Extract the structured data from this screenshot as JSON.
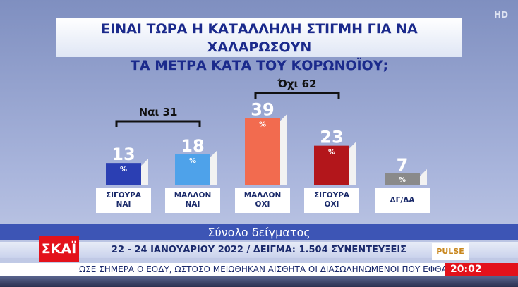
{
  "chart_data": {
    "type": "bar",
    "title_lines": [
      "ΕΙΝΑΙ ΤΩΡΑ Η ΚΑΤΑΛΛΗΛΗ ΣΤΙΓΜΗ ΓΙΑ ΝΑ ΧΑΛΑΡΩΣΟΥΝ",
      "ΤΑ ΜΕΤΡΑ ΚΑΤΑ ΤΟΥ ΚΟΡΩΝΟΪΟΥ;"
    ],
    "categories": [
      "ΣΙΓΟΥΡΑ\nΝΑΙ",
      "ΜΑΛΛΟΝ\nΝΑΙ",
      "ΜΑΛΛΟΝ\nΟΧΙ",
      "ΣΙΓΟΥΡΑ\nΟΧΙ",
      "ΔΓ/ΔΑ"
    ],
    "values": [
      13,
      18,
      39,
      23,
      7
    ],
    "value_suffix": "%",
    "colors": [
      "#2b3fb3",
      "#4ea2ea",
      "#f26b4f",
      "#b3161b",
      "#8a8a8a"
    ],
    "groups": [
      "Ναι 31",
      "Όχι 62"
    ]
  },
  "footer": {
    "sample": "Σύνολο δείγματος",
    "info": "22 - 24 ΙΑΝΟΥΑΡΙΟΥ 2022 / ΔΕΙΓΜΑ: 1.504 ΣΥΝΕΝΤΕΥΞΕΙΣ",
    "channel": "ΣΚΑΪ",
    "pollster": "PULSE",
    "badge": "HD",
    "ticker": "ΩΣΕ ΣΗΜΕΡΑ Ο ΕΟΔΥ, ΩΣΤΟΣΟ ΜΕΙΩΘΗΚΑΝ ΑΙΣΘΗΤΑ ΟΙ ΔΙΑΣΩΛΗΝΩΜΕΝΟΙ ΠΟΥ ΕΦΘΑΣΑΝ Σ",
    "time": "20:02"
  }
}
